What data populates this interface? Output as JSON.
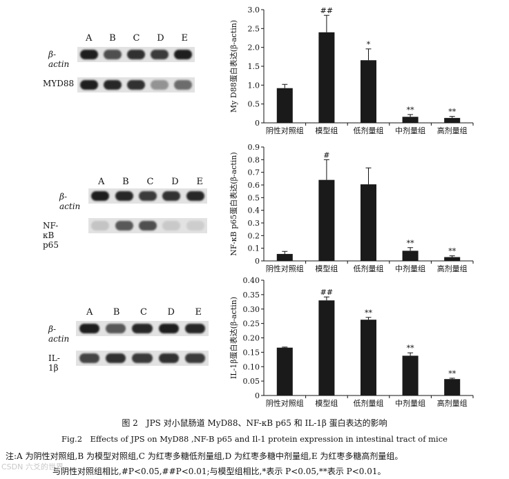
{
  "blots": [
    {
      "lanes": [
        "A",
        "B",
        "C",
        "D",
        "E"
      ],
      "rows": [
        {
          "label": "β-actin",
          "intensity": [
            1.0,
            0.75,
            0.9,
            0.85,
            1.0
          ]
        },
        {
          "label": "MYD88",
          "intensity": [
            1.0,
            0.95,
            0.9,
            0.4,
            0.6
          ]
        }
      ]
    },
    {
      "lanes": [
        "A",
        "B",
        "C",
        "D",
        "E"
      ],
      "rows": [
        {
          "label": "β-actin",
          "intensity": [
            1.0,
            0.95,
            0.85,
            0.9,
            0.95
          ]
        },
        {
          "label": "NF-κB p65",
          "intensity": [
            0.15,
            0.7,
            0.75,
            0.12,
            0.1
          ]
        }
      ]
    },
    {
      "lanes": [
        "A",
        "B",
        "C",
        "D",
        "E"
      ],
      "rows": [
        {
          "label": "β-actin",
          "intensity": [
            1.0,
            0.7,
            0.95,
            1.0,
            0.95
          ]
        },
        {
          "label": "IL-1β",
          "intensity": [
            0.8,
            0.9,
            0.85,
            0.9,
            0.85
          ]
        }
      ]
    }
  ],
  "chart_data": [
    {
      "type": "bar",
      "categories": [
        "阴性对照组",
        "模型组",
        "低剂量组",
        "中剂量组",
        "高剂量组"
      ],
      "values": [
        0.92,
        2.4,
        1.66,
        0.16,
        0.13
      ],
      "errors": [
        0.1,
        0.45,
        0.3,
        0.06,
        0.04
      ],
      "annotations": [
        "",
        "##",
        "*",
        "**",
        "**"
      ],
      "ylabel": "My D88蛋白表达(β-actin)",
      "ylim": [
        0,
        3.0
      ],
      "yticks": [
        0,
        0.5,
        1.0,
        1.5,
        2.0,
        2.5,
        3.0
      ],
      "ytick_labels": [
        "0",
        "0.5",
        "1.0",
        "1.5",
        "2.0",
        "2.5",
        "3.0"
      ]
    },
    {
      "type": "bar",
      "categories": [
        "阴性对照组",
        "模型组",
        "低剂量组",
        "中剂量组",
        "高剂量组"
      ],
      "values": [
        0.055,
        0.64,
        0.605,
        0.08,
        0.03
      ],
      "errors": [
        0.02,
        0.16,
        0.13,
        0.025,
        0.01
      ],
      "annotations": [
        "",
        "#",
        "",
        "**",
        "**"
      ],
      "ylabel": "NF-κB p65蛋白表达(β-actin)",
      "ylim": [
        0,
        0.9
      ],
      "yticks": [
        0,
        0.1,
        0.2,
        0.3,
        0.4,
        0.5,
        0.6,
        0.7,
        0.8,
        0.9
      ],
      "ytick_labels": [
        "0",
        "0.1",
        "0.2",
        "0.3",
        "0.4",
        "0.5",
        "0.6",
        "0.7",
        "0.8",
        "0.9"
      ]
    },
    {
      "type": "bar",
      "categories": [
        "阴性对照组",
        "模型组",
        "低剂量组",
        "中剂量组",
        "高剂量组"
      ],
      "values": [
        0.166,
        0.33,
        0.263,
        0.138,
        0.057
      ],
      "errors": [
        0.002,
        0.012,
        0.008,
        0.01,
        0.003
      ],
      "annotations": [
        "",
        "##",
        "**",
        "**",
        "**"
      ],
      "ylabel": "IL-1β蛋白表达(β-actin)",
      "ylim": [
        0,
        0.4
      ],
      "yticks": [
        0,
        0.05,
        0.1,
        0.15,
        0.2,
        0.25,
        0.3,
        0.35,
        0.4
      ],
      "ytick_labels": [
        "0",
        "0.05",
        "0.10",
        "0.15",
        "0.20",
        "0.25",
        "0.30",
        "0.35",
        "0.40"
      ]
    }
  ],
  "caption": {
    "cn": "图 2　JPS 对小鼠肠道 MyD88、NF-κB p65 和 IL-1β 蛋白表达的影响",
    "en": "Fig.2　Effects of JPS on MyD88 ,NF-B p65 and Il-1 protein expression in intestinal tract of mice",
    "note1": "注:A 为阴性对照组,B 为模型对照组,C 为红枣多糖低剂量组,D 为红枣多糖中剂量组,E 为红枣多糖高剂量组。",
    "note2": "与阴性对照组相比,#P<0.05,##P<0.01;与模型组相比,*表示 P<0.05,**表示 P<0.01。"
  },
  "watermark": "CSDN 六爻的世界"
}
